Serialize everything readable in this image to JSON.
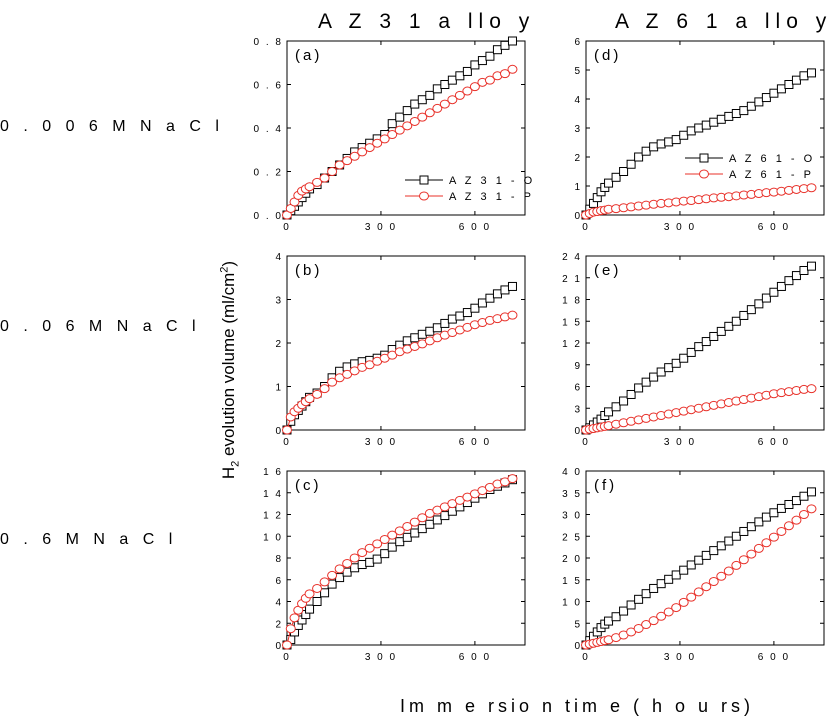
{
  "columns": [
    "A Z 3 1   a llo y",
    "A Z 6 1   a llo y"
  ],
  "rows": [
    "0 . 0 0 6 M   N a C l",
    "0 . 0 6 M   N a C l",
    "0 . 6 M   N a C l"
  ],
  "axes": {
    "xlabel": "Im m e rsio n  tim e  ( h o u rs)",
    "ylabel_prefix": "H",
    "ylabel_sub": "2",
    "ylabel_main": " evolution volume (ml/cm",
    "ylabel_sup": "2",
    "ylabel_end": ")"
  },
  "colors": {
    "O": "#000000",
    "P": "#e8312a"
  },
  "chart_data": [
    {
      "type": "line",
      "panel": "(a)",
      "xlim": [
        0,
        760
      ],
      "ylim": [
        0,
        0.8
      ],
      "xticks": [
        0,
        300,
        600
      ],
      "xtick_labels": [
        "0",
        "3 0 0",
        "6 0 0"
      ],
      "yticks": [
        0.0,
        0.2,
        0.4,
        0.6,
        0.8
      ],
      "ytick_labels": [
        "0 . 0",
        "0 . 2",
        "0 . 4",
        "0 . 6",
        "0 . 8"
      ],
      "legend": {
        "placement": "center-right",
        "entries": [
          "A Z 3 1 - O",
          "A Z 3 1 - P"
        ]
      },
      "series": [
        {
          "key": "O",
          "marker": "square",
          "x": [
            0,
            12,
            24,
            36,
            48,
            60,
            72,
            96,
            120,
            144,
            168,
            192,
            216,
            240,
            264,
            288,
            312,
            336,
            360,
            384,
            408,
            432,
            456,
            480,
            504,
            528,
            552,
            576,
            600,
            624,
            648,
            672,
            696,
            720
          ],
          "y": [
            0.0,
            0.02,
            0.04,
            0.06,
            0.08,
            0.1,
            0.12,
            0.14,
            0.17,
            0.2,
            0.23,
            0.26,
            0.29,
            0.31,
            0.33,
            0.35,
            0.37,
            0.42,
            0.45,
            0.48,
            0.51,
            0.53,
            0.55,
            0.58,
            0.6,
            0.62,
            0.64,
            0.66,
            0.69,
            0.71,
            0.73,
            0.76,
            0.78,
            0.8
          ]
        },
        {
          "key": "P",
          "marker": "circle",
          "x": [
            0,
            12,
            24,
            36,
            48,
            60,
            72,
            96,
            120,
            144,
            168,
            192,
            216,
            240,
            264,
            288,
            312,
            336,
            360,
            384,
            408,
            432,
            456,
            480,
            504,
            528,
            552,
            576,
            600,
            624,
            648,
            672,
            696,
            720
          ],
          "y": [
            0.0,
            0.03,
            0.06,
            0.09,
            0.11,
            0.12,
            0.13,
            0.15,
            0.17,
            0.2,
            0.23,
            0.25,
            0.27,
            0.29,
            0.31,
            0.33,
            0.35,
            0.37,
            0.39,
            0.41,
            0.43,
            0.45,
            0.47,
            0.49,
            0.51,
            0.53,
            0.55,
            0.57,
            0.59,
            0.61,
            0.62,
            0.64,
            0.65,
            0.67
          ]
        }
      ]
    },
    {
      "type": "line",
      "panel": "(b)",
      "xlim": [
        0,
        760
      ],
      "ylim": [
        0,
        4
      ],
      "xticks": [
        0,
        300,
        600
      ],
      "xtick_labels": [
        "0",
        "3 0 0",
        "6 0 0"
      ],
      "yticks": [
        0,
        1,
        2,
        3,
        4
      ],
      "ytick_labels": [
        "0",
        "1",
        "2",
        "3",
        "4"
      ],
      "series": [
        {
          "key": "O",
          "marker": "square",
          "x": [
            0,
            12,
            24,
            36,
            48,
            60,
            72,
            96,
            120,
            144,
            168,
            192,
            216,
            240,
            264,
            288,
            312,
            336,
            360,
            384,
            408,
            432,
            456,
            480,
            504,
            528,
            552,
            576,
            600,
            624,
            648,
            672,
            696,
            720
          ],
          "y": [
            0.0,
            0.2,
            0.35,
            0.45,
            0.55,
            0.65,
            0.75,
            0.85,
            1.0,
            1.2,
            1.35,
            1.45,
            1.52,
            1.57,
            1.6,
            1.65,
            1.72,
            1.85,
            1.95,
            2.05,
            2.12,
            2.2,
            2.27,
            2.35,
            2.45,
            2.55,
            2.62,
            2.7,
            2.8,
            2.92,
            3.03,
            3.13,
            3.22,
            3.3
          ]
        },
        {
          "key": "P",
          "marker": "circle",
          "x": [
            0,
            12,
            24,
            36,
            48,
            60,
            72,
            96,
            120,
            144,
            168,
            192,
            216,
            240,
            264,
            288,
            312,
            336,
            360,
            384,
            408,
            432,
            456,
            480,
            504,
            528,
            552,
            576,
            600,
            624,
            648,
            672,
            696,
            720
          ],
          "y": [
            0.0,
            0.3,
            0.42,
            0.5,
            0.58,
            0.65,
            0.72,
            0.82,
            0.95,
            1.1,
            1.2,
            1.28,
            1.36,
            1.44,
            1.5,
            1.58,
            1.65,
            1.72,
            1.8,
            1.86,
            1.92,
            1.98,
            2.05,
            2.12,
            2.18,
            2.24,
            2.3,
            2.36,
            2.42,
            2.47,
            2.52,
            2.56,
            2.6,
            2.64
          ]
        }
      ]
    },
    {
      "type": "line",
      "panel": "(c)",
      "xlim": [
        0,
        760
      ],
      "ylim": [
        0,
        16
      ],
      "xticks": [
        0,
        300,
        600
      ],
      "xtick_labels": [
        "0",
        "3 0 0",
        "6 0 0"
      ],
      "yticks": [
        0,
        2,
        4,
        6,
        8,
        10,
        12,
        14,
        16
      ],
      "ytick_labels": [
        "0",
        "2",
        "4",
        "6",
        "8",
        "1 0",
        "1 2",
        "1 4",
        "1 6"
      ],
      "series": [
        {
          "key": "O",
          "marker": "square",
          "x": [
            0,
            12,
            24,
            36,
            48,
            60,
            72,
            96,
            120,
            144,
            168,
            192,
            216,
            240,
            264,
            288,
            312,
            336,
            360,
            384,
            408,
            432,
            456,
            480,
            504,
            528,
            552,
            576,
            600,
            624,
            648,
            672,
            696,
            720
          ],
          "y": [
            0.0,
            0.5,
            1.2,
            1.8,
            2.3,
            2.8,
            3.3,
            4.0,
            4.8,
            5.6,
            6.2,
            6.7,
            7.1,
            7.4,
            7.6,
            7.9,
            8.4,
            9.0,
            9.5,
            9.9,
            10.3,
            10.7,
            11.1,
            11.5,
            11.9,
            12.3,
            12.7,
            13.1,
            13.5,
            13.9,
            14.3,
            14.6,
            14.9,
            15.2
          ]
        },
        {
          "key": "P",
          "marker": "circle",
          "x": [
            0,
            12,
            24,
            36,
            48,
            60,
            72,
            96,
            120,
            144,
            168,
            192,
            216,
            240,
            264,
            288,
            312,
            336,
            360,
            384,
            408,
            432,
            456,
            480,
            504,
            528,
            552,
            576,
            600,
            624,
            648,
            672,
            696,
            720
          ],
          "y": [
            0.0,
            1.5,
            2.5,
            3.2,
            3.8,
            4.3,
            4.7,
            5.2,
            5.8,
            6.4,
            7.0,
            7.5,
            8.0,
            8.5,
            8.9,
            9.3,
            9.7,
            10.1,
            10.5,
            10.9,
            11.3,
            11.7,
            12.1,
            12.4,
            12.7,
            13.0,
            13.3,
            13.6,
            13.9,
            14.2,
            14.5,
            14.8,
            15.0,
            15.3
          ]
        }
      ]
    },
    {
      "type": "line",
      "panel": "(d)",
      "xlim": [
        0,
        760
      ],
      "ylim": [
        0,
        6
      ],
      "xticks": [
        0,
        300,
        600
      ],
      "xtick_labels": [
        "0",
        "3 0 0",
        "6 0 0"
      ],
      "yticks": [
        0,
        1,
        2,
        3,
        4,
        5,
        6
      ],
      "ytick_labels": [
        "0",
        "1",
        "2",
        "3",
        "4",
        "5",
        "6"
      ],
      "legend": {
        "placement": "center-right",
        "entries": [
          "A Z 6 1 - O",
          "A Z 6 1 - P"
        ]
      },
      "series": [
        {
          "key": "O",
          "marker": "square",
          "x": [
            0,
            12,
            24,
            36,
            48,
            60,
            72,
            96,
            120,
            144,
            168,
            192,
            216,
            240,
            264,
            288,
            312,
            336,
            360,
            384,
            408,
            432,
            456,
            480,
            504,
            528,
            552,
            576,
            600,
            624,
            648,
            672,
            696,
            720
          ],
          "y": [
            0.0,
            0.2,
            0.4,
            0.6,
            0.8,
            0.95,
            1.1,
            1.3,
            1.5,
            1.75,
            2.0,
            2.2,
            2.35,
            2.45,
            2.52,
            2.6,
            2.75,
            2.9,
            3.0,
            3.1,
            3.2,
            3.3,
            3.4,
            3.5,
            3.6,
            3.75,
            3.9,
            4.05,
            4.2,
            4.35,
            4.5,
            4.65,
            4.8,
            4.9
          ]
        },
        {
          "key": "P",
          "marker": "circle",
          "x": [
            0,
            12,
            24,
            36,
            48,
            60,
            72,
            96,
            120,
            144,
            168,
            192,
            216,
            240,
            264,
            288,
            312,
            336,
            360,
            384,
            408,
            432,
            456,
            480,
            504,
            528,
            552,
            576,
            600,
            624,
            648,
            672,
            696,
            720
          ],
          "y": [
            0.0,
            0.05,
            0.1,
            0.12,
            0.15,
            0.17,
            0.2,
            0.22,
            0.25,
            0.28,
            0.31,
            0.34,
            0.37,
            0.4,
            0.42,
            0.45,
            0.48,
            0.5,
            0.53,
            0.56,
            0.59,
            0.61,
            0.63,
            0.66,
            0.69,
            0.71,
            0.74,
            0.77,
            0.79,
            0.82,
            0.85,
            0.88,
            0.91,
            0.94
          ]
        }
      ]
    },
    {
      "type": "line",
      "panel": "(e)",
      "xlim": [
        0,
        760
      ],
      "ylim": [
        0,
        24
      ],
      "xticks": [
        0,
        300,
        600
      ],
      "xtick_labels": [
        "0",
        "3 0 0",
        "6 0 0"
      ],
      "yticks": [
        0,
        3,
        6,
        9,
        12,
        15,
        18,
        21,
        24
      ],
      "ytick_labels": [
        "0",
        "3",
        "6",
        "9",
        "1 2",
        "1 5",
        "1 8",
        "2 1",
        "2 4"
      ],
      "series": [
        {
          "key": "O",
          "marker": "square",
          "x": [
            0,
            12,
            24,
            36,
            48,
            60,
            72,
            96,
            120,
            144,
            168,
            192,
            216,
            240,
            264,
            288,
            312,
            336,
            360,
            384,
            408,
            432,
            456,
            480,
            504,
            528,
            552,
            576,
            600,
            624,
            648,
            672,
            696,
            720
          ],
          "y": [
            0.0,
            0.3,
            0.7,
            1.1,
            1.5,
            2.0,
            2.5,
            3.2,
            4.0,
            4.9,
            5.8,
            6.6,
            7.3,
            8.0,
            8.6,
            9.2,
            9.9,
            10.7,
            11.5,
            12.2,
            12.9,
            13.6,
            14.3,
            15.0,
            15.8,
            16.6,
            17.4,
            18.2,
            19.0,
            19.8,
            20.6,
            21.3,
            22.0,
            22.6
          ]
        },
        {
          "key": "P",
          "marker": "circle",
          "x": [
            0,
            12,
            24,
            36,
            48,
            60,
            72,
            96,
            120,
            144,
            168,
            192,
            216,
            240,
            264,
            288,
            312,
            336,
            360,
            384,
            408,
            432,
            456,
            480,
            504,
            528,
            552,
            576,
            600,
            624,
            648,
            672,
            696,
            720
          ],
          "y": [
            0.0,
            0.1,
            0.2,
            0.3,
            0.4,
            0.5,
            0.6,
            0.8,
            1.0,
            1.2,
            1.4,
            1.6,
            1.8,
            2.0,
            2.2,
            2.4,
            2.6,
            2.8,
            3.0,
            3.2,
            3.4,
            3.6,
            3.8,
            4.0,
            4.2,
            4.4,
            4.6,
            4.8,
            5.0,
            5.15,
            5.3,
            5.45,
            5.6,
            5.7
          ]
        }
      ]
    },
    {
      "type": "line",
      "panel": "(f)",
      "xlim": [
        0,
        760
      ],
      "ylim": [
        0,
        40
      ],
      "xticks": [
        0,
        300,
        600
      ],
      "xtick_labels": [
        "0",
        "3 0 0",
        "6 0 0"
      ],
      "yticks": [
        0,
        5,
        10,
        15,
        20,
        25,
        30,
        35,
        40
      ],
      "ytick_labels": [
        "0",
        "5",
        "1 0",
        "1 5",
        "2 0",
        "2 5",
        "3 0",
        "3 5",
        "4 0"
      ],
      "series": [
        {
          "key": "O",
          "marker": "square",
          "x": [
            0,
            12,
            24,
            36,
            48,
            60,
            72,
            96,
            120,
            144,
            168,
            192,
            216,
            240,
            264,
            288,
            312,
            336,
            360,
            384,
            408,
            432,
            456,
            480,
            504,
            528,
            552,
            576,
            600,
            624,
            648,
            672,
            696,
            720
          ],
          "y": [
            0.0,
            1.0,
            2.0,
            3.0,
            4.0,
            4.8,
            5.5,
            6.5,
            7.8,
            9.2,
            10.5,
            11.8,
            13.0,
            14.1,
            15.1,
            16.1,
            17.2,
            18.4,
            19.5,
            20.6,
            21.7,
            22.8,
            23.9,
            25.0,
            26.1,
            27.2,
            28.3,
            29.4,
            30.4,
            31.4,
            32.3,
            33.2,
            34.2,
            35.2
          ]
        },
        {
          "key": "P",
          "marker": "circle",
          "x": [
            0,
            12,
            24,
            36,
            48,
            60,
            72,
            96,
            120,
            144,
            168,
            192,
            216,
            240,
            264,
            288,
            312,
            336,
            360,
            384,
            408,
            432,
            456,
            480,
            504,
            528,
            552,
            576,
            600,
            624,
            648,
            672,
            696,
            720
          ],
          "y": [
            0.0,
            0.2,
            0.4,
            0.6,
            0.8,
            1.0,
            1.2,
            1.7,
            2.3,
            3.0,
            3.8,
            4.7,
            5.6,
            6.6,
            7.6,
            8.6,
            9.8,
            11.0,
            12.2,
            13.4,
            14.6,
            15.8,
            17.0,
            18.3,
            19.6,
            20.9,
            22.2,
            23.5,
            24.8,
            26.1,
            27.4,
            28.7,
            30.0,
            31.3
          ]
        }
      ]
    }
  ]
}
